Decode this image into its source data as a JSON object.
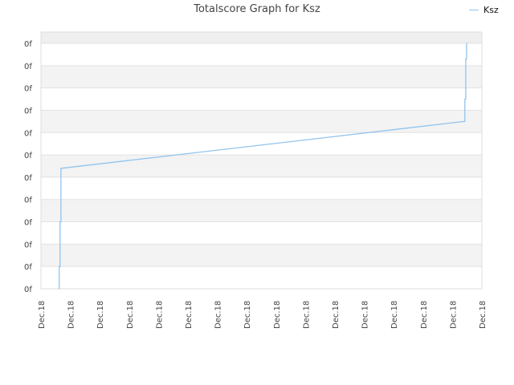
{
  "chart": {
    "title": "Totalscore Graph for Ksz",
    "legend_label": "Ksz"
  },
  "chart_data": {
    "type": "line",
    "title": "Totalscore Graph for Ksz",
    "xlabel": "",
    "ylabel": "",
    "x_tick_labels": [
      "Dec.18",
      "Dec.18",
      "Dec.18",
      "Dec.18",
      "Dec.18",
      "Dec.18",
      "Dec.18",
      "Dec.18",
      "Dec.18",
      "Dec.18",
      "Dec.18",
      "Dec.18",
      "Dec.18",
      "Dec.18",
      "Dec.18",
      "Dec.18"
    ],
    "y_tick_labels": [
      "0f",
      "0f",
      "0f",
      "0f",
      "0f",
      "0f",
      "0f",
      "0f",
      "0f",
      "0f",
      "0f",
      "0f"
    ],
    "xlim": [
      0,
      15
    ],
    "ylim": [
      0,
      11
    ],
    "grid": true,
    "legend_position": "top-right",
    "series": [
      {
        "name": "Ksz",
        "color": "#90c4ee",
        "x": [
          0.6,
          0.62,
          0.62,
          0.65,
          0.65,
          0.68,
          0.68,
          0.7,
          14.4,
          14.42,
          14.42,
          14.45,
          14.45,
          14.48,
          14.48,
          14.5
        ],
        "y": [
          0,
          0,
          1,
          1,
          3,
          3,
          5.4,
          5.4,
          7.5,
          7.5,
          8.5,
          8.5,
          10.3,
          10.3,
          11,
          11
        ]
      }
    ]
  }
}
